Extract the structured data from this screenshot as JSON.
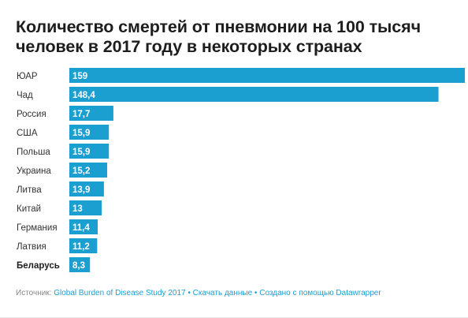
{
  "chart_data": {
    "type": "bar",
    "orientation": "horizontal",
    "title": "Количество смертей от пневмонии на 100 тысяч человек в 2017 году в некоторых странах",
    "categories": [
      "ЮАР",
      "Чад",
      "Россия",
      "США",
      "Польша",
      "Украина",
      "Литва",
      "Китай",
      "Германия",
      "Латвия",
      "Беларусь"
    ],
    "values": [
      159,
      148.4,
      17.7,
      15.9,
      15.9,
      15.2,
      13.9,
      13,
      11.4,
      11.2,
      8.3
    ],
    "value_labels": [
      "159",
      "148,4",
      "17,7",
      "15,9",
      "15,9",
      "15,2",
      "13,9",
      "13",
      "11,4",
      "11,2",
      "8,3"
    ],
    "highlight_category": "Беларусь",
    "xlim": [
      0,
      159
    ],
    "bar_color": "#1a9fd0",
    "grid": false,
    "legend": "none"
  },
  "footer": {
    "source_label": "Источник:",
    "source_link": "Global Burden of Disease Study 2017",
    "separator": "•",
    "download_link": "Скачать данные",
    "created_with": "Создано с помощью Datawrapper"
  }
}
